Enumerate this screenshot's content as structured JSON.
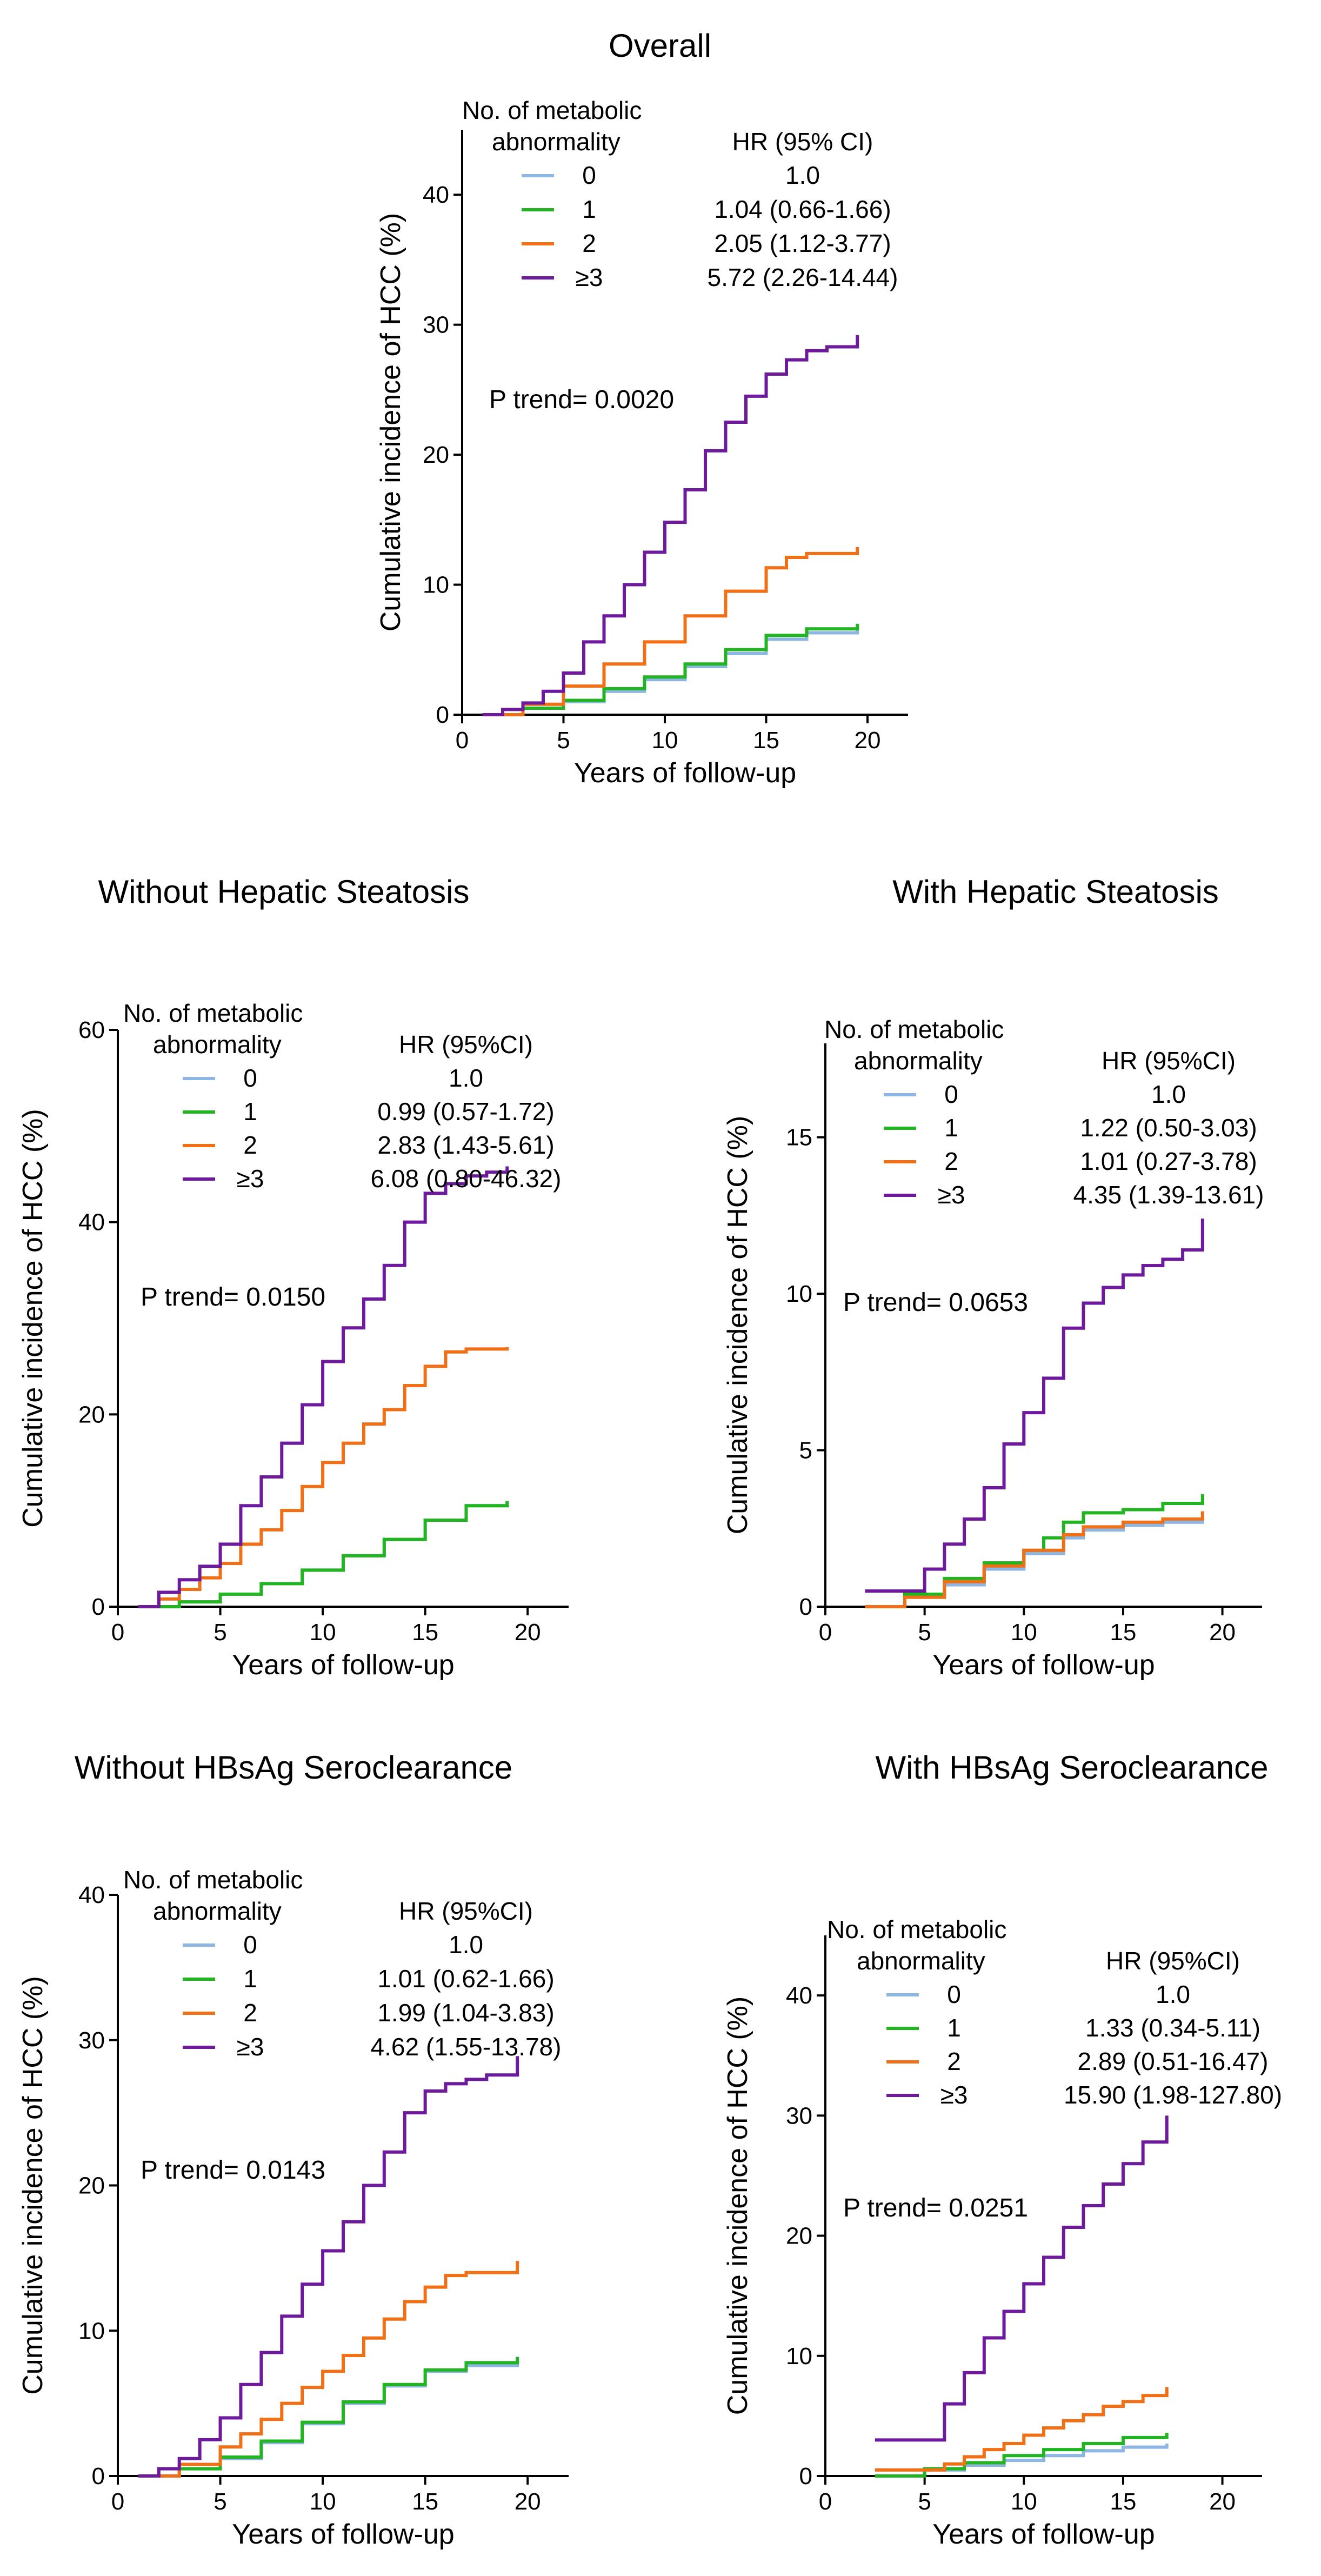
{
  "figure": {
    "colors": {
      "g0": "#8db6e2",
      "g1": "#22b422",
      "g2": "#f07018",
      "g3": "#6e1a9c",
      "axis": "#000000"
    },
    "legend_header": {
      "line1": "No. of metabolic",
      "line2": "abnormality"
    },
    "xlabel": "Years of follow-up",
    "ylabel": "Cumulative incidence of HCC (%)"
  },
  "chart_data": [
    {
      "type": "line",
      "title": "Overall",
      "xlabel": "Years of follow-up",
      "ylabel": "Cumulative incidence of HCC (%)",
      "xlim": [
        0,
        22
      ],
      "ylim": [
        0,
        45
      ],
      "xticks": [
        0,
        5,
        10,
        15,
        20
      ],
      "yticks": [
        0,
        10,
        20,
        30,
        40
      ],
      "hr_header": "HR (95% CI)",
      "p_trend": "P trend= 0.0020",
      "series": [
        {
          "name": "0",
          "hr": "1.0",
          "x": [
            1,
            3,
            5,
            7,
            9,
            11,
            13,
            15,
            17,
            19.5
          ],
          "y": [
            0,
            0.5,
            1,
            1.8,
            2.7,
            3.7,
            4.7,
            5.8,
            6.3,
            6.7
          ]
        },
        {
          "name": "1",
          "hr": "1.04 (0.66-1.66)",
          "x": [
            1,
            3,
            5,
            7,
            9,
            11,
            13,
            15,
            17,
            19.5
          ],
          "y": [
            0,
            0.5,
            1.1,
            2,
            2.9,
            3.9,
            5,
            6.1,
            6.6,
            7.0
          ]
        },
        {
          "name": "2",
          "hr": "2.05 (1.12-3.77)",
          "x": [
            1,
            3,
            5,
            7,
            9,
            11,
            13,
            15,
            16,
            17,
            19.5
          ],
          "y": [
            0,
            0.8,
            2.2,
            3.9,
            5.6,
            7.6,
            9.5,
            11.3,
            12.1,
            12.4,
            12.9
          ]
        },
        {
          "name": "≥3",
          "hr": "5.72 (2.26-14.44)",
          "x": [
            1,
            2,
            3,
            4,
            5,
            6,
            7,
            8,
            9,
            10,
            11,
            12,
            13,
            14,
            15,
            16,
            17,
            18,
            19.5
          ],
          "y": [
            0,
            0.4,
            0.9,
            1.8,
            3.2,
            5.6,
            7.6,
            10,
            12.5,
            14.8,
            17.3,
            20.3,
            22.5,
            24.5,
            26.2,
            27.3,
            28,
            28.3,
            29.2
          ]
        }
      ]
    },
    {
      "type": "line",
      "title": "Without Hepatic Steatosis",
      "xlabel": "Years of follow-up",
      "ylabel": "Cumulative incidence of HCC (%)",
      "xlim": [
        0,
        22
      ],
      "ylim": [
        0,
        60
      ],
      "xticks": [
        0,
        5,
        10,
        15,
        20
      ],
      "yticks": [
        0,
        20,
        40,
        60
      ],
      "hr_header": "HR (95%CI)",
      "p_trend": "P trend= 0.0150",
      "series": [
        {
          "name": "0",
          "hr": "1.0",
          "x": [
            1,
            3,
            5,
            7,
            9,
            11,
            13,
            15,
            17,
            19
          ],
          "y": [
            0,
            0.5,
            1.3,
            2.4,
            3.8,
            5.3,
            7,
            9,
            10.5,
            11
          ]
        },
        {
          "name": "1",
          "hr": "0.99 (0.57-1.72)",
          "x": [
            1,
            3,
            5,
            7,
            9,
            11,
            13,
            15,
            17,
            19
          ],
          "y": [
            0,
            0.5,
            1.3,
            2.4,
            3.8,
            5.3,
            7,
            9,
            10.5,
            11
          ]
        },
        {
          "name": "2",
          "hr": "2.83 (1.43-5.61)",
          "x": [
            1,
            2,
            3,
            4,
            5,
            6,
            7,
            8,
            9,
            10,
            11,
            12,
            13,
            14,
            15,
            16,
            17,
            19
          ],
          "y": [
            0,
            0.8,
            1.8,
            3,
            4.5,
            6.5,
            8,
            10,
            12.5,
            15,
            17,
            19,
            20.5,
            23,
            25,
            26.5,
            26.8,
            27
          ]
        },
        {
          "name": "≥3",
          "hr": "6.08 (0.80-46.32)",
          "x": [
            1,
            2,
            3,
            4,
            5,
            6,
            7,
            8,
            9,
            10,
            11,
            12,
            13,
            14,
            15,
            16,
            17,
            18,
            19
          ],
          "y": [
            0,
            1.5,
            2.8,
            4.2,
            6.5,
            10.5,
            13.5,
            17,
            21,
            25.5,
            29,
            32,
            35.5,
            40,
            43,
            44,
            44.8,
            45.2,
            45.8
          ]
        }
      ]
    },
    {
      "type": "line",
      "title": "With Hepatic Steatosis",
      "xlabel": "Years of follow-up",
      "ylabel": "Cumulative incidence of HCC (%)",
      "xlim": [
        0,
        22
      ],
      "ylim": [
        0,
        18
      ],
      "xticks": [
        0,
        5,
        10,
        15,
        20
      ],
      "yticks": [
        0,
        5,
        10,
        15
      ],
      "hr_header": "HR (95%CI)",
      "p_trend": "P trend=  0.0653",
      "series": [
        {
          "name": "0",
          "hr": "1.0",
          "x": [
            2,
            4,
            6,
            8,
            10,
            12,
            13,
            15,
            17,
            19
          ],
          "y": [
            0,
            0.3,
            0.7,
            1.2,
            1.7,
            2.2,
            2.45,
            2.6,
            2.7,
            2.9
          ]
        },
        {
          "name": "1",
          "hr": "1.22 (0.50-3.03)",
          "x": [
            2,
            4,
            6,
            8,
            10,
            11,
            12,
            13,
            15,
            17,
            19
          ],
          "y": [
            0,
            0.4,
            0.9,
            1.4,
            1.8,
            2.2,
            2.7,
            3,
            3.1,
            3.3,
            3.6
          ]
        },
        {
          "name": "2",
          "hr": "1.01 (0.27-3.78)",
          "x": [
            2,
            4,
            6,
            8,
            10,
            12,
            13,
            15,
            17,
            19
          ],
          "y": [
            0,
            0.3,
            0.8,
            1.3,
            1.8,
            2.3,
            2.55,
            2.7,
            2.8,
            3.05
          ]
        },
        {
          "name": "≥3",
          "hr": "4.35 (1.39-13.61)",
          "x": [
            2,
            4,
            5,
            6,
            7,
            8,
            9,
            10,
            11,
            12,
            13,
            14,
            15,
            16,
            17,
            18,
            19
          ],
          "y": [
            0.5,
            0.5,
            1.2,
            2,
            2.8,
            3.8,
            5.2,
            6.2,
            7.3,
            8.9,
            9.7,
            10.2,
            10.6,
            10.9,
            11.1,
            11.4,
            12.4
          ]
        }
      ]
    },
    {
      "type": "line",
      "title": "Without HBsAg Seroclearance",
      "xlabel": "Years of follow-up",
      "ylabel": "Cumulative incidence of HCC (%)",
      "xlim": [
        0,
        22
      ],
      "ylim": [
        0,
        40
      ],
      "xticks": [
        0,
        5,
        10,
        15,
        20
      ],
      "yticks": [
        0,
        10,
        20,
        30,
        40
      ],
      "hr_header": "HR (95%CI)",
      "p_trend": "P trend=  0.0143",
      "series": [
        {
          "name": "0",
          "hr": "1.0",
          "x": [
            1,
            3,
            5,
            7,
            9,
            11,
            13,
            15,
            17,
            19.5
          ],
          "y": [
            0,
            0.5,
            1.2,
            2.3,
            3.6,
            5,
            6.2,
            7.2,
            7.6,
            8
          ]
        },
        {
          "name": "1",
          "hr": "1.01 (0.62-1.66)",
          "x": [
            1,
            3,
            5,
            7,
            9,
            11,
            13,
            15,
            17,
            19.5
          ],
          "y": [
            0,
            0.5,
            1.3,
            2.4,
            3.7,
            5.1,
            6.3,
            7.3,
            7.8,
            8.2
          ]
        },
        {
          "name": "2",
          "hr": "1.99 (1.04-3.83)",
          "x": [
            1,
            3,
            5,
            6,
            7,
            8,
            9,
            10,
            11,
            12,
            13,
            14,
            15,
            16,
            17,
            19.5
          ],
          "y": [
            0,
            0.8,
            2,
            2.9,
            3.9,
            5,
            6.1,
            7.2,
            8.3,
            9.5,
            10.8,
            12,
            13,
            13.8,
            14,
            14.8
          ]
        },
        {
          "name": "≥3",
          "hr": "4.62 (1.55-13.78)",
          "x": [
            1,
            2,
            3,
            4,
            5,
            6,
            7,
            8,
            9,
            10,
            11,
            12,
            13,
            14,
            15,
            16,
            17,
            18,
            19.5
          ],
          "y": [
            0,
            0.5,
            1.2,
            2.5,
            4,
            6.3,
            8.5,
            11,
            13.2,
            15.5,
            17.5,
            20,
            22.3,
            25,
            26.5,
            27,
            27.3,
            27.6,
            28.9
          ]
        }
      ]
    },
    {
      "type": "line",
      "title": "With HBsAg Seroclearance",
      "xlabel": "Years of follow-up",
      "ylabel": "Cumulative incidence of HCC (%)",
      "xlim": [
        0,
        22
      ],
      "ylim": [
        0,
        45
      ],
      "xticks": [
        0,
        5,
        10,
        15,
        20
      ],
      "yticks": [
        0,
        10,
        20,
        30,
        40
      ],
      "hr_header": "HR (95%CI)",
      "p_trend": "P trend=  0.0251",
      "series": [
        {
          "name": "0",
          "hr": "1.0",
          "x": [
            2.5,
            5,
            7,
            9,
            11,
            13,
            15,
            17.2
          ],
          "y": [
            0,
            0.5,
            0.9,
            1.3,
            1.7,
            2.1,
            2.4,
            2.7
          ]
        },
        {
          "name": "1",
          "hr": "1.33 (0.34-5.11)",
          "x": [
            2.5,
            5,
            7,
            9,
            11,
            13,
            15,
            17.2
          ],
          "y": [
            0,
            0.6,
            1.1,
            1.7,
            2.2,
            2.7,
            3.2,
            3.6
          ]
        },
        {
          "name": "2",
          "hr": "2.89 (0.51-16.47)",
          "x": [
            2.5,
            5,
            6,
            7,
            8,
            9,
            10,
            11,
            12,
            13,
            14,
            15,
            16,
            17.2
          ],
          "y": [
            0.5,
            0.5,
            1,
            1.6,
            2.2,
            2.7,
            3.4,
            4,
            4.6,
            5.1,
            5.8,
            6.2,
            6.7,
            7.4
          ]
        },
        {
          "name": "≥3",
          "hr": "15.90 (1.98-127.80)",
          "x": [
            2.5,
            5,
            6,
            7,
            8,
            9,
            10,
            11,
            12,
            13,
            14,
            15,
            16,
            17.2
          ],
          "y": [
            3,
            3,
            6,
            8.6,
            11.5,
            13.7,
            16,
            18.2,
            20.7,
            22.5,
            24.3,
            26,
            27.8,
            30
          ]
        }
      ]
    }
  ]
}
